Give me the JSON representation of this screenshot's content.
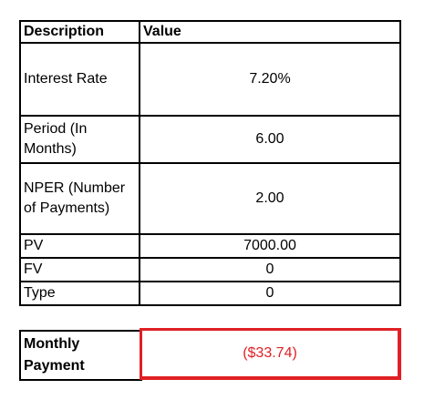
{
  "table": {
    "headers": {
      "description": "Description",
      "value": "Value"
    },
    "rows": [
      {
        "description": "Interest Rate",
        "value": "7.20%"
      },
      {
        "description": "Period (In Months)",
        "value": "6.00"
      },
      {
        "description": "NPER (Number of Payments)",
        "value": "2.00"
      },
      {
        "description": "PV",
        "value": "7000.00"
      },
      {
        "description": "FV",
        "value": "0"
      },
      {
        "description": "Type",
        "value": "0"
      }
    ]
  },
  "result": {
    "label": "Monthly Payment",
    "value": "($33.74)",
    "highlight_color": "#e02024"
  }
}
